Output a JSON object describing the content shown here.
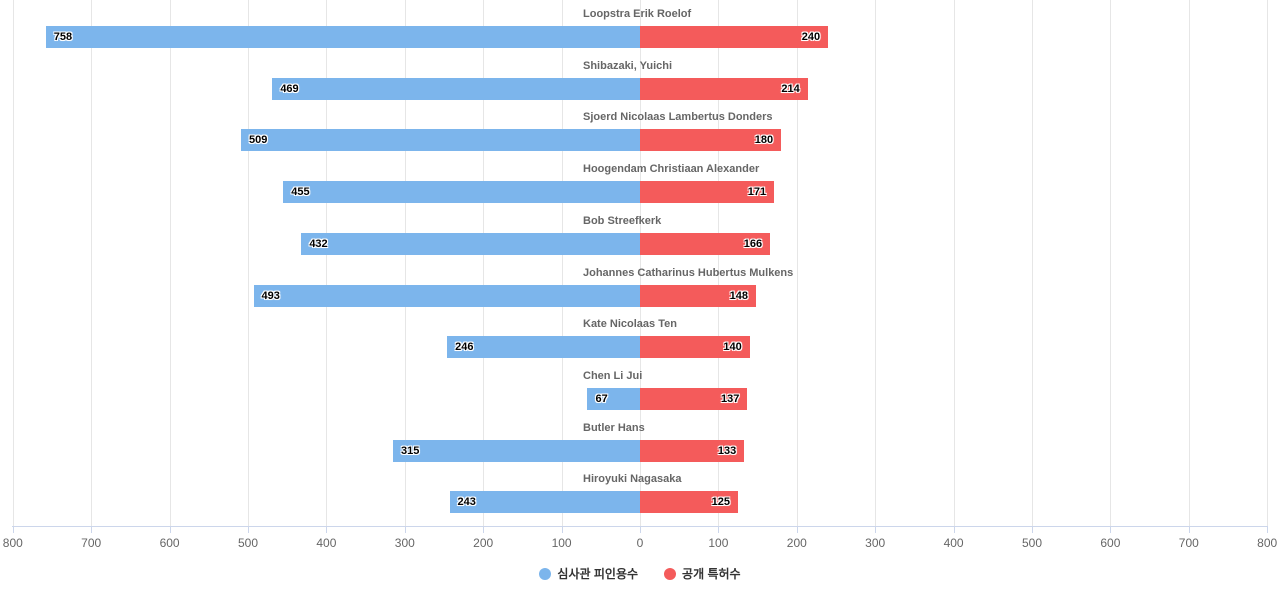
{
  "chart_data": {
    "type": "bar",
    "subtype": "diverging-tornado",
    "orientation": "horizontal",
    "title": "",
    "categories": [
      "Loopstra Erik Roelof",
      "Shibazaki, Yuichi",
      "Sjoerd Nicolaas Lambertus Donders",
      "Hoogendam Christiaan Alexander",
      "Bob Streefkerk",
      "Johannes Catharinus Hubertus Mulkens",
      "Kate Nicolaas Ten",
      "Chen Li Jui",
      "Butler Hans",
      "Hiroyuki Nagasaka"
    ],
    "series": [
      {
        "name": "심사관 피인용수",
        "color": "#7cb5ec",
        "direction": "left",
        "values": [
          758,
          469,
          509,
          455,
          432,
          493,
          246,
          67,
          315,
          243
        ]
      },
      {
        "name": "공개 특허수",
        "color": "#f45b5b",
        "direction": "right",
        "values": [
          240,
          214,
          180,
          171,
          166,
          148,
          140,
          137,
          133,
          125
        ]
      }
    ],
    "axis": {
      "tick_labels": [
        "800",
        "700",
        "600",
        "500",
        "400",
        "300",
        "200",
        "100",
        "0",
        "100",
        "200",
        "300",
        "400",
        "500",
        "600",
        "700",
        "800"
      ],
      "interval": 100,
      "max_each_side": 800,
      "grid": true,
      "grid_color": "#e6e6e6",
      "line_color": "#ccd6eb",
      "tick_text_color": "#666666"
    },
    "legend_position": "bottom-center"
  }
}
